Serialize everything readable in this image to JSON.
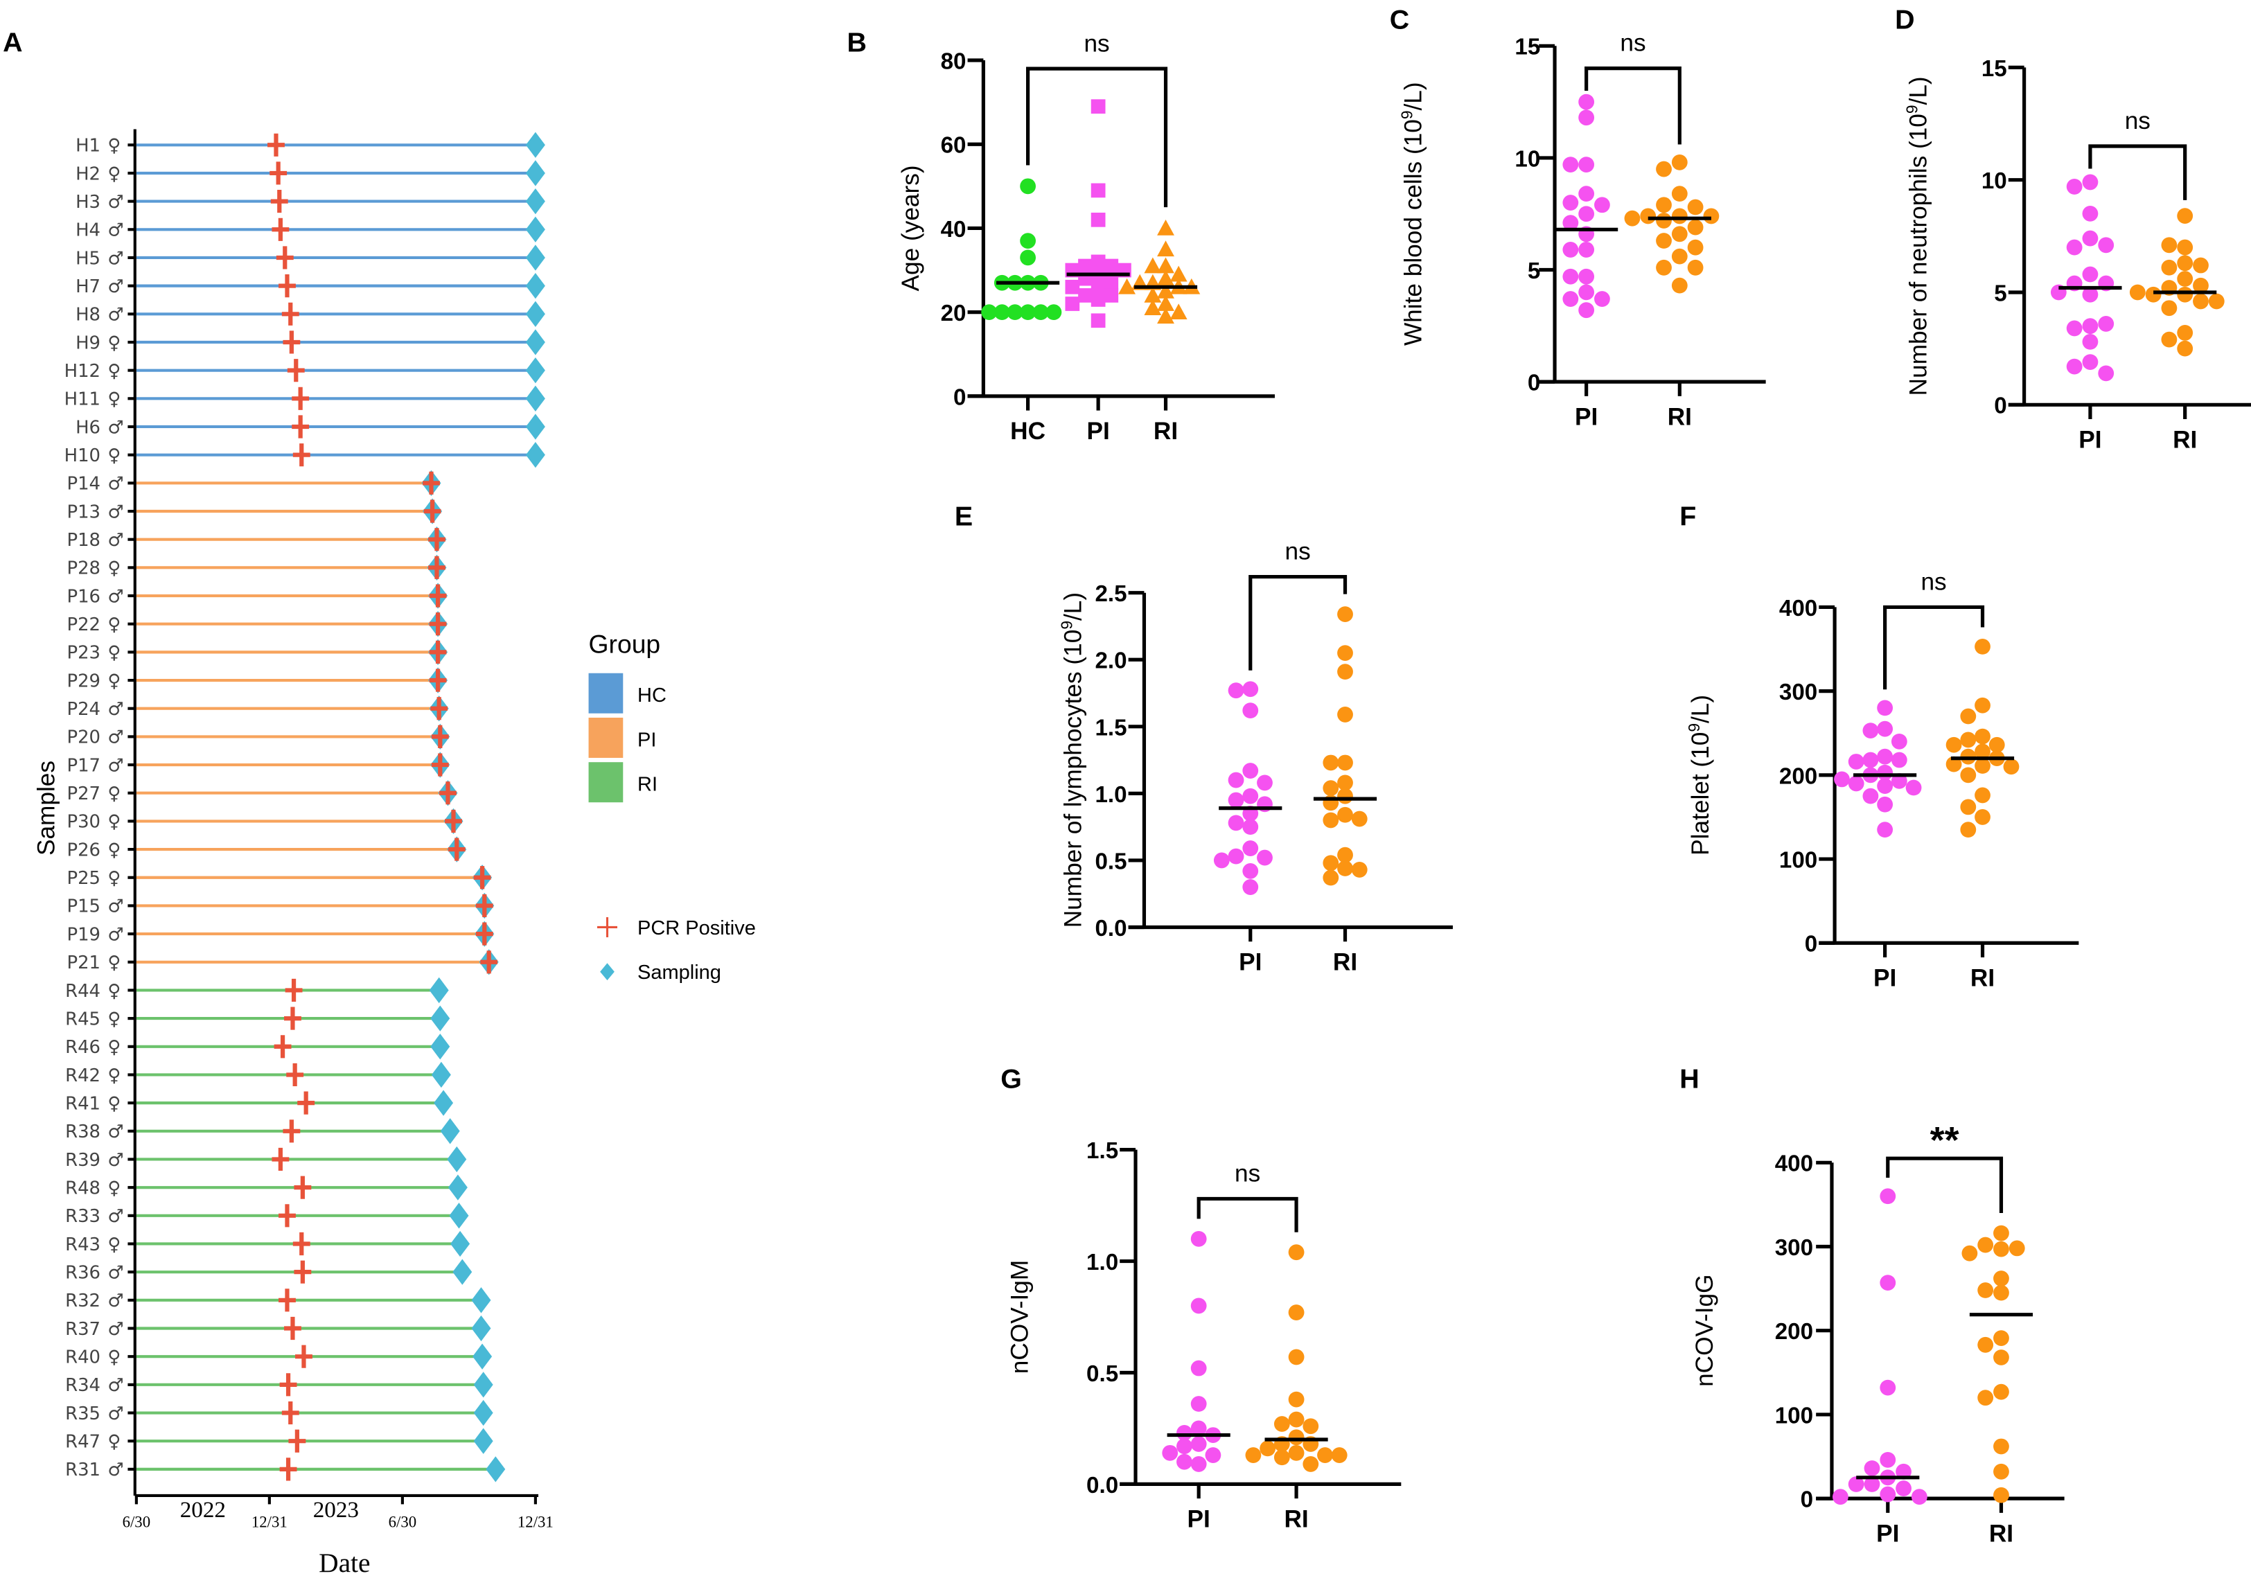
{
  "figure_panels": [
    "A",
    "B",
    "C",
    "D",
    "E",
    "F",
    "G",
    "H"
  ],
  "colors": {
    "hc_line": "#5b9bd5",
    "pi_line": "#f7a35c",
    "ri_line": "#6cc26c",
    "pcr_marker": "#e8533a",
    "sampling_marker": "#49b9d6",
    "hc_point": "#22e022",
    "pi_point": "#f552f0",
    "ri_point": "#fb9412",
    "median_line": "#000000"
  },
  "chart_data": [
    {
      "panel": "A",
      "type": "timeline",
      "xlabel": "Date",
      "ylabel": "Samples",
      "x_axis": {
        "unit": "months since 2022-06-30",
        "range": [
          0,
          18
        ],
        "ticks": [
          {
            "value": 0,
            "label": "6/30"
          },
          {
            "value": 6,
            "label": "12/31"
          },
          {
            "value": 12,
            "label": "6/30"
          },
          {
            "value": 18,
            "label": "12/31"
          }
        ],
        "year_labels": [
          {
            "value": 3,
            "label": "2022"
          },
          {
            "value": 9,
            "label": "2023"
          }
        ]
      },
      "legend": {
        "title": "Group",
        "placement": "right",
        "groups": [
          {
            "key": "HC",
            "label": "HC",
            "color": "#5b9bd5"
          },
          {
            "key": "PI",
            "label": "PI",
            "color": "#f7a35c"
          },
          {
            "key": "RI",
            "label": "RI",
            "color": "#6cc26c"
          }
        ],
        "markers": [
          {
            "key": "pcr",
            "label": "PCR Positive",
            "color": "#e8533a",
            "shape": "cross"
          },
          {
            "key": "sampling",
            "label": "Sampling",
            "color": "#49b9d6",
            "shape": "diamond"
          }
        ]
      },
      "samples": [
        {
          "id": "H1",
          "sex": "♀",
          "group": "HC",
          "pcr": 6.3,
          "sampling": 18.0
        },
        {
          "id": "H2",
          "sex": "♀",
          "group": "HC",
          "pcr": 6.4,
          "sampling": 18.0
        },
        {
          "id": "H3",
          "sex": "♂",
          "group": "HC",
          "pcr": 6.45,
          "sampling": 18.0
        },
        {
          "id": "H4",
          "sex": "♂",
          "group": "HC",
          "pcr": 6.5,
          "sampling": 18.0
        },
        {
          "id": "H5",
          "sex": "♂",
          "group": "HC",
          "pcr": 6.7,
          "sampling": 18.0
        },
        {
          "id": "H7",
          "sex": "♂",
          "group": "HC",
          "pcr": 6.8,
          "sampling": 18.0
        },
        {
          "id": "H8",
          "sex": "♂",
          "group": "HC",
          "pcr": 6.95,
          "sampling": 18.0
        },
        {
          "id": "H9",
          "sex": "♀",
          "group": "HC",
          "pcr": 7.0,
          "sampling": 18.0
        },
        {
          "id": "H12",
          "sex": "♀",
          "group": "HC",
          "pcr": 7.2,
          "sampling": 18.0
        },
        {
          "id": "H11",
          "sex": "♀",
          "group": "HC",
          "pcr": 7.4,
          "sampling": 18.0
        },
        {
          "id": "H6",
          "sex": "♂",
          "group": "HC",
          "pcr": 7.4,
          "sampling": 18.0
        },
        {
          "id": "H10",
          "sex": "♀",
          "group": "HC",
          "pcr": 7.45,
          "sampling": 18.0
        },
        {
          "id": "P14",
          "sex": "♂",
          "group": "PI",
          "pcr": 13.3,
          "sampling": 13.3
        },
        {
          "id": "P13",
          "sex": "♂",
          "group": "PI",
          "pcr": 13.35,
          "sampling": 13.35
        },
        {
          "id": "P18",
          "sex": "♂",
          "group": "PI",
          "pcr": 13.55,
          "sampling": 13.55
        },
        {
          "id": "P28",
          "sex": "♀",
          "group": "PI",
          "pcr": 13.55,
          "sampling": 13.55
        },
        {
          "id": "P16",
          "sex": "♂",
          "group": "PI",
          "pcr": 13.6,
          "sampling": 13.6
        },
        {
          "id": "P22",
          "sex": "♀",
          "group": "PI",
          "pcr": 13.6,
          "sampling": 13.6
        },
        {
          "id": "P23",
          "sex": "♀",
          "group": "PI",
          "pcr": 13.6,
          "sampling": 13.6
        },
        {
          "id": "P29",
          "sex": "♀",
          "group": "PI",
          "pcr": 13.6,
          "sampling": 13.6
        },
        {
          "id": "P24",
          "sex": "♂",
          "group": "PI",
          "pcr": 13.65,
          "sampling": 13.65
        },
        {
          "id": "P20",
          "sex": "♂",
          "group": "PI",
          "pcr": 13.7,
          "sampling": 13.7
        },
        {
          "id": "P17",
          "sex": "♂",
          "group": "PI",
          "pcr": 13.7,
          "sampling": 13.7
        },
        {
          "id": "P27",
          "sex": "♀",
          "group": "PI",
          "pcr": 14.05,
          "sampling": 14.05
        },
        {
          "id": "P30",
          "sex": "♀",
          "group": "PI",
          "pcr": 14.3,
          "sampling": 14.3
        },
        {
          "id": "P26",
          "sex": "♀",
          "group": "PI",
          "pcr": 14.45,
          "sampling": 14.45
        },
        {
          "id": "P25",
          "sex": "♀",
          "group": "PI",
          "pcr": 15.6,
          "sampling": 15.6
        },
        {
          "id": "P15",
          "sex": "♂",
          "group": "PI",
          "pcr": 15.7,
          "sampling": 15.7
        },
        {
          "id": "P19",
          "sex": "♂",
          "group": "PI",
          "pcr": 15.7,
          "sampling": 15.7
        },
        {
          "id": "P21",
          "sex": "♀",
          "group": "PI",
          "pcr": 15.9,
          "sampling": 15.9
        },
        {
          "id": "R44",
          "sex": "♀",
          "group": "RI",
          "pcr": 7.1,
          "sampling": 13.65
        },
        {
          "id": "R45",
          "sex": "♀",
          "group": "RI",
          "pcr": 7.05,
          "sampling": 13.7
        },
        {
          "id": "R46",
          "sex": "♀",
          "group": "RI",
          "pcr": 6.6,
          "sampling": 13.7
        },
        {
          "id": "R42",
          "sex": "♀",
          "group": "RI",
          "pcr": 7.15,
          "sampling": 13.75
        },
        {
          "id": "R41",
          "sex": "♀",
          "group": "RI",
          "pcr": 7.65,
          "sampling": 13.85
        },
        {
          "id": "R38",
          "sex": "♂",
          "group": "RI",
          "pcr": 7.0,
          "sampling": 14.15
        },
        {
          "id": "R39",
          "sex": "♂",
          "group": "RI",
          "pcr": 6.5,
          "sampling": 14.45
        },
        {
          "id": "R48",
          "sex": "♀",
          "group": "RI",
          "pcr": 7.5,
          "sampling": 14.5
        },
        {
          "id": "R33",
          "sex": "♂",
          "group": "RI",
          "pcr": 6.8,
          "sampling": 14.55
        },
        {
          "id": "R43",
          "sex": "♀",
          "group": "RI",
          "pcr": 7.45,
          "sampling": 14.6
        },
        {
          "id": "R36",
          "sex": "♂",
          "group": "RI",
          "pcr": 7.5,
          "sampling": 14.7
        },
        {
          "id": "R32",
          "sex": "♂",
          "group": "RI",
          "pcr": 6.8,
          "sampling": 15.55
        },
        {
          "id": "R37",
          "sex": "♂",
          "group": "RI",
          "pcr": 7.05,
          "sampling": 15.55
        },
        {
          "id": "R40",
          "sex": "♀",
          "group": "RI",
          "pcr": 7.55,
          "sampling": 15.6
        },
        {
          "id": "R34",
          "sex": "♂",
          "group": "RI",
          "pcr": 6.85,
          "sampling": 15.65
        },
        {
          "id": "R35",
          "sex": "♂",
          "group": "RI",
          "pcr": 6.95,
          "sampling": 15.65
        },
        {
          "id": "R47",
          "sex": "♀",
          "group": "RI",
          "pcr": 7.25,
          "sampling": 15.65
        },
        {
          "id": "R31",
          "sex": "♂",
          "group": "RI",
          "pcr": 6.85,
          "sampling": 16.2
        }
      ]
    },
    {
      "panel": "B",
      "type": "scatter",
      "ylabel": "Age (years)",
      "ylim": [
        0,
        80
      ],
      "yticks": [
        0,
        20,
        40,
        60,
        80
      ],
      "categories": [
        "HC",
        "PI",
        "RI"
      ],
      "series": [
        {
          "name": "HC",
          "color": "#22e022",
          "marker": "circle",
          "median": 27,
          "values": [
            50,
            37,
            33,
            27,
            27,
            27,
            27,
            20,
            20,
            20,
            20,
            20,
            20
          ]
        },
        {
          "name": "PI",
          "color": "#f552f0",
          "marker": "square",
          "median": 29,
          "values": [
            69,
            49,
            42,
            32,
            31,
            31,
            30,
            30,
            29,
            28,
            27,
            26,
            26,
            24,
            24,
            23,
            22,
            18
          ]
        },
        {
          "name": "RI",
          "color": "#fb9412",
          "marker": "triangle",
          "median": 26,
          "values": [
            40,
            35,
            31,
            31,
            29,
            28,
            27,
            27,
            26,
            26,
            26,
            25,
            24,
            22,
            21,
            20,
            19
          ]
        }
      ],
      "comparisons": [
        {
          "from": "HC",
          "to": "RI",
          "label": "ns",
          "y": 78,
          "y_from": 55,
          "y_to": 45
        }
      ]
    },
    {
      "panel": "C",
      "type": "scatter",
      "ylabel_main": "White blood cells (10",
      "ylabel_sup": "9",
      "ylabel_end": "/L)",
      "ylim": [
        0,
        15
      ],
      "yticks": [
        0,
        5,
        10,
        15
      ],
      "categories": [
        "PI",
        "RI"
      ],
      "series": [
        {
          "name": "PI",
          "color": "#f552f0",
          "marker": "circle",
          "median": 6.8,
          "values": [
            12.5,
            11.8,
            9.7,
            9.7,
            8.4,
            8.0,
            7.9,
            7.5,
            7.1,
            6.6,
            5.9,
            5.9,
            4.7,
            4.7,
            4.0,
            3.7,
            3.7,
            3.2
          ]
        },
        {
          "name": "RI",
          "color": "#fb9412",
          "marker": "circle",
          "median": 7.3,
          "values": [
            9.8,
            9.5,
            8.4,
            7.9,
            7.8,
            7.4,
            7.4,
            7.4,
            7.3,
            7.2,
            6.9,
            6.6,
            6.3,
            6.0,
            5.6,
            5.1,
            5.1,
            4.3
          ]
        }
      ],
      "comparisons": [
        {
          "from": "PI",
          "to": "RI",
          "label": "ns",
          "y": 14.0,
          "y_from": 13.0,
          "y_to": 10.6
        }
      ]
    },
    {
      "panel": "D",
      "type": "scatter",
      "ylabel_main": "Number of neutrophils (10",
      "ylabel_sup": "9",
      "ylabel_end": "/L)",
      "ylim": [
        0,
        15
      ],
      "yticks": [
        0,
        5,
        10,
        15
      ],
      "categories": [
        "PI",
        "RI"
      ],
      "series": [
        {
          "name": "PI",
          "color": "#f552f0",
          "marker": "circle",
          "median": 5.2,
          "values": [
            9.9,
            9.7,
            8.5,
            7.4,
            7.0,
            7.1,
            5.8,
            5.4,
            5.4,
            4.9,
            5.0,
            3.5,
            3.4,
            3.6,
            2.8,
            1.9,
            1.7,
            1.4
          ]
        },
        {
          "name": "RI",
          "color": "#fb9412",
          "marker": "circle",
          "median": 5.0,
          "values": [
            8.4,
            7.0,
            7.1,
            6.3,
            6.1,
            6.2,
            5.6,
            5.2,
            5.3,
            4.9,
            4.9,
            4.6,
            4.6,
            4.3,
            3.2,
            2.9,
            2.5,
            5.0
          ]
        }
      ],
      "comparisons": [
        {
          "from": "PI",
          "to": "RI",
          "label": "ns",
          "y": 11.5,
          "y_from": 10.5,
          "y_to": 9.1
        }
      ]
    },
    {
      "panel": "E",
      "type": "scatter",
      "ylabel_main": "Number of lymphocytes (10",
      "ylabel_sup": "9",
      "ylabel_end": "/L)",
      "ylim": [
        0,
        2.5
      ],
      "yticks": [
        "0.0",
        "0.5",
        "1.0",
        "1.5",
        "2.0",
        "2.5"
      ],
      "categories": [
        "PI",
        "RI"
      ],
      "series": [
        {
          "name": "PI",
          "color": "#f552f0",
          "marker": "circle",
          "median": 0.89,
          "values": [
            1.78,
            1.77,
            1.62,
            1.17,
            1.1,
            1.08,
            0.98,
            0.95,
            0.92,
            0.85,
            0.78,
            0.75,
            0.59,
            0.53,
            0.52,
            0.5,
            0.42,
            0.3
          ]
        },
        {
          "name": "RI",
          "color": "#fb9412",
          "marker": "circle",
          "median": 0.96,
          "values": [
            2.34,
            2.05,
            1.91,
            1.59,
            1.23,
            1.23,
            1.08,
            1.04,
            0.98,
            0.93,
            0.84,
            0.8,
            0.81,
            0.54,
            0.48,
            0.44,
            0.43,
            0.37
          ]
        }
      ],
      "comparisons": [
        {
          "from": "PI",
          "to": "RI",
          "label": "ns",
          "y": 2.62,
          "y_from": 1.92,
          "y_to": 2.49
        }
      ]
    },
    {
      "panel": "F",
      "type": "scatter",
      "ylabel_main": "Platelet (10",
      "ylabel_sup": "9",
      "ylabel_end": "/L)",
      "ylim": [
        0,
        400
      ],
      "yticks": [
        0,
        100,
        200,
        300,
        400
      ],
      "categories": [
        "PI",
        "RI"
      ],
      "series": [
        {
          "name": "PI",
          "color": "#f552f0",
          "marker": "circle",
          "median": 200,
          "values": [
            280,
            255,
            253,
            240,
            222,
            218,
            218,
            216,
            203,
            200,
            193,
            190,
            187,
            185,
            175,
            165,
            135,
            195
          ]
        },
        {
          "name": "RI",
          "color": "#fb9412",
          "marker": "circle",
          "median": 220,
          "values": [
            353,
            283,
            270,
            246,
            242,
            236,
            236,
            228,
            222,
            220,
            213,
            211,
            210,
            200,
            176,
            162,
            150,
            135
          ]
        }
      ],
      "comparisons": [
        {
          "from": "PI",
          "to": "RI",
          "label": "ns",
          "y": 400,
          "y_from": 302,
          "y_to": 376
        }
      ]
    },
    {
      "panel": "G",
      "type": "scatter",
      "ylabel": "nCOV-IgM",
      "ylim": [
        0,
        1.5
      ],
      "yticks": [
        "0.0",
        "0.5",
        "1.0",
        "1.5"
      ],
      "categories": [
        "PI",
        "RI"
      ],
      "series": [
        {
          "name": "PI",
          "color": "#f552f0",
          "marker": "circle",
          "median": 0.22,
          "values": [
            1.1,
            0.8,
            0.52,
            0.36,
            0.25,
            0.23,
            0.22,
            0.18,
            0.17,
            0.13,
            0.14,
            0.09,
            0.1
          ]
        },
        {
          "name": "RI",
          "color": "#fb9412",
          "marker": "circle",
          "median": 0.2,
          "values": [
            1.04,
            0.77,
            0.57,
            0.38,
            0.29,
            0.27,
            0.26,
            0.21,
            0.18,
            0.18,
            0.16,
            0.14,
            0.13,
            0.13,
            0.13,
            0.12,
            0.09
          ]
        }
      ],
      "comparisons": [
        {
          "from": "PI",
          "to": "RI",
          "label": "ns",
          "y": 1.28,
          "y_from": 1.19,
          "y_to": 1.13
        }
      ]
    },
    {
      "panel": "H",
      "type": "scatter",
      "ylabel": "nCOV-IgG",
      "ylim": [
        0,
        400
      ],
      "yticks": [
        0,
        100,
        200,
        300,
        400
      ],
      "categories": [
        "PI",
        "RI"
      ],
      "series": [
        {
          "name": "PI",
          "color": "#f552f0",
          "marker": "circle",
          "median": 25,
          "values": [
            360,
            257,
            132,
            46,
            36,
            32,
            25,
            17,
            17,
            12,
            5,
            2,
            2
          ]
        },
        {
          "name": "RI",
          "color": "#fb9412",
          "marker": "circle",
          "median": 219,
          "values": [
            316,
            302,
            297,
            298,
            292,
            262,
            248,
            245,
            191,
            183,
            168,
            127,
            120,
            62,
            32,
            4
          ]
        }
      ],
      "comparisons": [
        {
          "from": "PI",
          "to": "RI",
          "label": "**",
          "y": 405,
          "y_from": 382,
          "y_to": 340
        }
      ]
    }
  ]
}
